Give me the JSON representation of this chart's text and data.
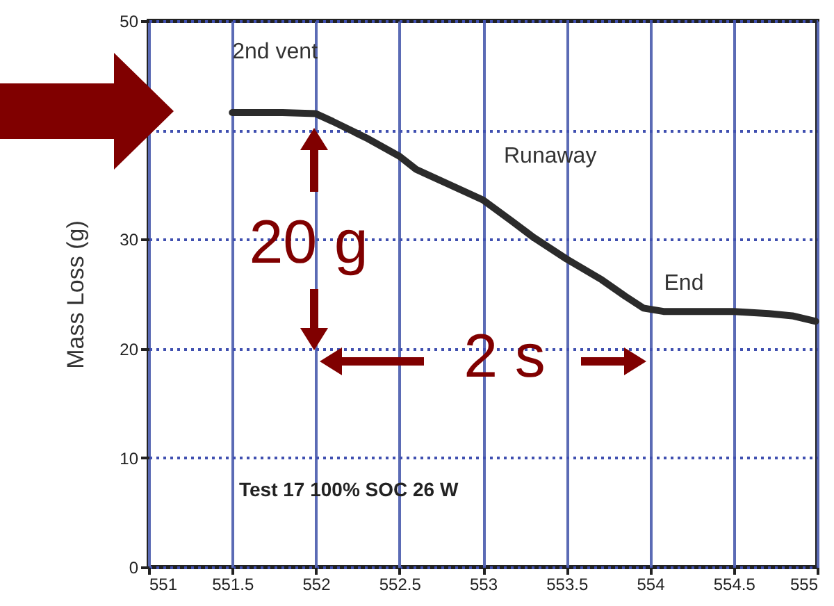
{
  "chart_data": {
    "type": "line",
    "ylabel": "Mass Loss (g)",
    "x": [
      551.5,
      551.8,
      552.0,
      552.1,
      552.3,
      552.5,
      552.6,
      552.8,
      553.0,
      553.17,
      553.3,
      553.5,
      553.71,
      553.85,
      553.96,
      554.08,
      554.3,
      554.5,
      554.71,
      554.85,
      554.99
    ],
    "series": [
      {
        "color": "#2b2b2b",
        "values": [
          41.6,
          41.6,
          41.5,
          40.8,
          39.3,
          37.6,
          36.4,
          35.0,
          33.6,
          31.7,
          30.2,
          28.2,
          26.3,
          24.8,
          23.7,
          23.4,
          23.4,
          23.4,
          23.2,
          23.0,
          22.5
        ]
      }
    ],
    "xlim": [
      551,
      555
    ],
    "xticks": [
      551,
      551.5,
      552,
      552.5,
      553,
      553.5,
      554,
      554.5,
      555
    ],
    "ylim": [
      0,
      50
    ],
    "yticks": [
      0,
      10,
      20,
      30,
      {
        "value": 40,
        "label": null
      },
      50
    ],
    "grid": true,
    "line_style": "solid",
    "marker": "none",
    "annotations": [
      {
        "text": "2nd vent",
        "x": 551.5,
        "y": 41.6
      },
      {
        "text": "Runaway",
        "x": 553,
        "y": 33.6
      },
      {
        "text": "End",
        "x": 554,
        "y": 23.7
      },
      "20 g",
      "2 s",
      "Test 17 100% SOC 26 W"
    ]
  }
}
